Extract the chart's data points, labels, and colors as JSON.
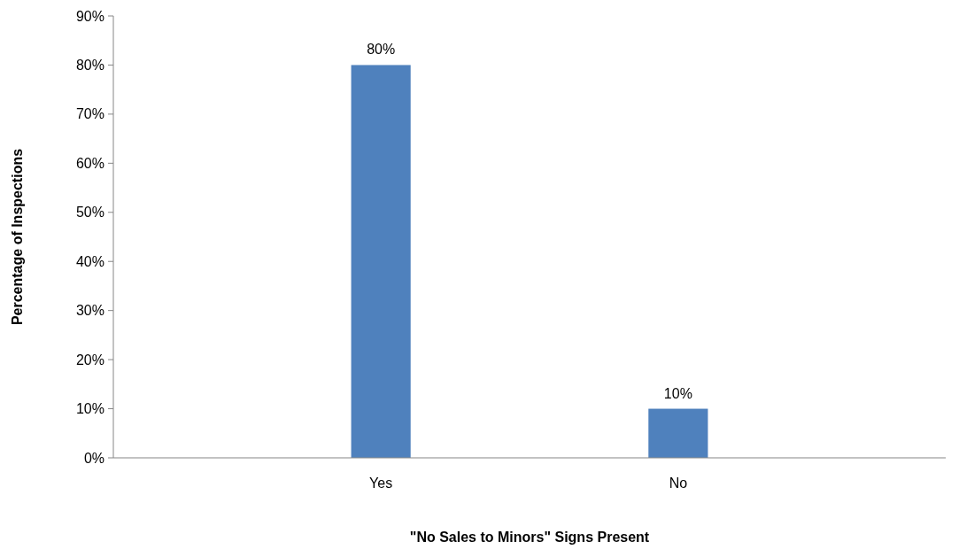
{
  "chart_data": {
    "type": "bar",
    "xlabel": "\"No Sales to Minors\" Signs Present",
    "ylabel": "Percentage of Inspections",
    "categories": [
      "Yes",
      "No"
    ],
    "values": [
      80,
      10
    ],
    "value_labels": [
      "80%",
      "10%"
    ],
    "color": "#4f81bd",
    "ylim": [
      0,
      90
    ],
    "yticks": [
      {
        "value": 0,
        "label": "0%"
      },
      {
        "value": 10,
        "label": "10%"
      },
      {
        "value": 20,
        "label": "20%"
      },
      {
        "value": 30,
        "label": "30%"
      },
      {
        "value": 40,
        "label": "40%"
      },
      {
        "value": 50,
        "label": "50%"
      },
      {
        "value": 60,
        "label": "60%"
      },
      {
        "value": 70,
        "label": "70%"
      },
      {
        "value": 80,
        "label": "80%"
      },
      {
        "value": 90,
        "label": "90%"
      }
    ],
    "grid": false
  }
}
